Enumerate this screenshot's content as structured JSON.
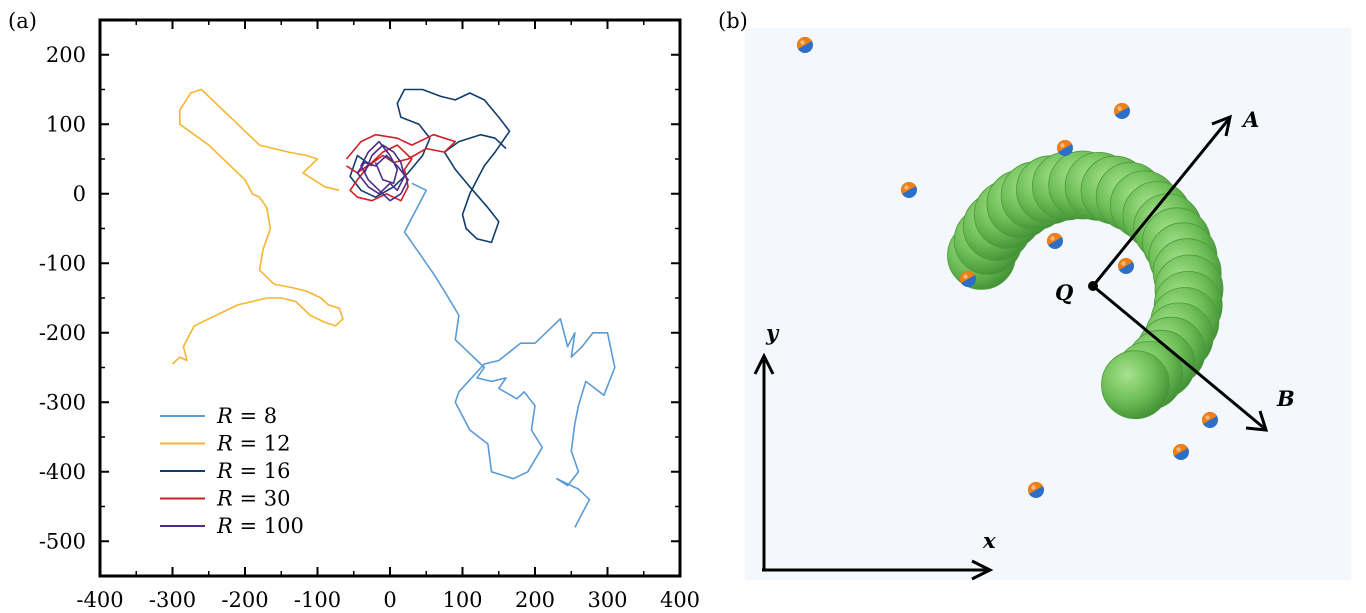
{
  "panels": {
    "a": {
      "label": "(a)"
    },
    "b": {
      "label": "(b)"
    }
  },
  "chart_data": {
    "type": "line",
    "xlim": [
      -400,
      400
    ],
    "ylim": [
      -550,
      250
    ],
    "xticks": [
      -400,
      -300,
      -200,
      -100,
      0,
      100,
      200,
      300,
      400
    ],
    "yticks": [
      200,
      100,
      0,
      -100,
      -200,
      -300,
      -400,
      -500
    ],
    "xtick_labels": [
      "-400",
      "-300",
      "-200",
      "-100",
      "0",
      "100",
      "200",
      "300",
      "400"
    ],
    "ytick_labels": [
      "200",
      "100",
      "0",
      "-100",
      "-200",
      "-300",
      "-400",
      "-500"
    ],
    "grid": false,
    "legend_position": "bottom-left",
    "series": [
      {
        "name": "R = 8",
        "legend_symbol": "R",
        "legend_value": "8",
        "color": "#5b9bd5",
        "x": [
          30,
          50,
          20,
          40,
          60,
          75,
          95,
          90,
          110,
          130,
          120,
          140,
          160,
          150,
          175,
          185,
          200,
          195,
          210,
          190,
          170,
          140,
          135,
          110,
          90,
          95,
          130,
          150,
          180,
          200,
          220,
          235,
          245,
          255,
          250,
          265,
          280,
          300,
          310,
          295,
          270,
          260,
          255,
          250,
          260,
          245,
          230,
          260,
          275,
          265,
          255
        ],
        "y": [
          15,
          5,
          -55,
          -85,
          -115,
          -140,
          -175,
          -210,
          -230,
          -250,
          -265,
          -270,
          -265,
          -280,
          -295,
          -285,
          -305,
          -340,
          -365,
          -400,
          -410,
          -400,
          -360,
          -340,
          -300,
          -285,
          -245,
          -240,
          -215,
          -215,
          -195,
          -180,
          -220,
          -200,
          -235,
          -220,
          -200,
          -200,
          -250,
          -290,
          -270,
          -305,
          -330,
          -370,
          -400,
          -420,
          -410,
          -425,
          -440,
          -460,
          -480
        ]
      },
      {
        "name": "R = 12",
        "legend_symbol": "R",
        "legend_value": "12",
        "color": "#f4b632",
        "x": [
          -70,
          -90,
          -120,
          -100,
          -115,
          -140,
          -160,
          -180,
          -200,
          -220,
          -240,
          -260,
          -275,
          -290,
          -290,
          -270,
          -250,
          -240,
          -220,
          -200,
          -190,
          -180,
          -170,
          -165,
          -175,
          -180,
          -160,
          -135,
          -115,
          -95,
          -85,
          -70,
          -65,
          -75,
          -90,
          -110,
          -130,
          -150,
          -170,
          -190,
          -210,
          -230,
          -250,
          -270,
          -285,
          -280,
          -290,
          -300
        ],
        "y": [
          5,
          10,
          30,
          50,
          55,
          60,
          65,
          70,
          90,
          110,
          130,
          150,
          145,
          120,
          100,
          85,
          70,
          60,
          40,
          20,
          0,
          -5,
          -20,
          -50,
          -80,
          -110,
          -130,
          -135,
          -140,
          -150,
          -160,
          -165,
          -180,
          -190,
          -185,
          -175,
          -155,
          -150,
          -150,
          -155,
          -160,
          -170,
          -180,
          -190,
          -220,
          -240,
          -235,
          -245
        ]
      },
      {
        "name": "R = 16",
        "legend_symbol": "R",
        "legend_value": "16",
        "color": "#0f3d6e",
        "x": [
          -25,
          -45,
          -55,
          -40,
          -20,
          5,
          25,
          45,
          55,
          40,
          15,
          10,
          20,
          45,
          70,
          90,
          110,
          130,
          150,
          165,
          155,
          145,
          130,
          120,
          110,
          100,
          105,
          120,
          140,
          150,
          135,
          110,
          90,
          75,
          95,
          125,
          145,
          160
        ],
        "y": [
          40,
          55,
          25,
          5,
          -5,
          10,
          30,
          55,
          80,
          100,
          110,
          130,
          150,
          150,
          140,
          135,
          145,
          135,
          110,
          90,
          75,
          60,
          40,
          20,
          0,
          -30,
          -50,
          -65,
          -70,
          -40,
          -20,
          10,
          35,
          60,
          75,
          85,
          80,
          65
        ]
      },
      {
        "name": "R = 30",
        "legend_symbol": "R",
        "legend_value": "30",
        "color": "#cc1f26",
        "x": [
          -60,
          -40,
          -20,
          10,
          30,
          60,
          90,
          75,
          50,
          25,
          5,
          -10,
          -30,
          -45,
          -55,
          -45,
          -25,
          -5,
          15,
          25,
          20,
          30,
          10,
          -10,
          -25,
          -45,
          -60
        ],
        "y": [
          50,
          75,
          85,
          80,
          70,
          85,
          75,
          60,
          65,
          50,
          45,
          55,
          40,
          20,
          5,
          -5,
          -10,
          0,
          -10,
          10,
          35,
          50,
          70,
          60,
          45,
          30,
          40
        ]
      },
      {
        "name": "R = 100",
        "legend_symbol": "R",
        "legend_value": "100",
        "color": "#4b2c8a",
        "x": [
          -35,
          -25,
          -10,
          5,
          15,
          20,
          10,
          0,
          -15,
          -30,
          -45,
          -35,
          -20,
          -5,
          10,
          25,
          15,
          0,
          -15,
          -30,
          -40,
          -30,
          -15,
          0,
          10,
          5,
          -10,
          -20
        ],
        "y": [
          30,
          55,
          70,
          60,
          45,
          25,
          5,
          15,
          0,
          10,
          30,
          45,
          40,
          55,
          40,
          20,
          0,
          -10,
          5,
          20,
          40,
          60,
          75,
          55,
          35,
          15,
          20,
          45
        ]
      }
    ]
  },
  "panel_b": {
    "background": "#f4f8fc",
    "body_color": "#6ebf57",
    "particle_colors": [
      "#2d6fc7",
      "#f07f14"
    ],
    "labels": {
      "A": "A",
      "B": "B",
      "Q": "Q",
      "x": "x",
      "y": "y"
    }
  }
}
